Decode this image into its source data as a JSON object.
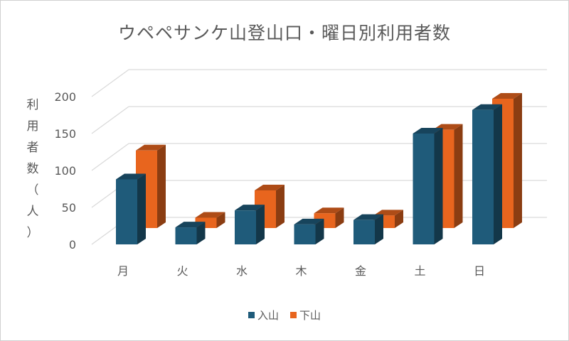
{
  "chart_data": {
    "type": "bar",
    "title": "ウペペサンケ山登山口・曜日別利用者数",
    "ylabel": "利用者数（人）",
    "xlabel": "",
    "categories": [
      "月",
      "火",
      "水",
      "木",
      "金",
      "土",
      "日"
    ],
    "series": [
      {
        "name": "入山",
        "values": [
          88,
          23,
          46,
          27,
          33,
          150,
          182
        ]
      },
      {
        "name": "下山",
        "values": [
          105,
          14,
          51,
          20,
          17,
          133,
          175
        ]
      }
    ],
    "ylim": [
      0,
      200
    ],
    "yticks": [
      "0",
      "50",
      "100",
      "150",
      "200"
    ],
    "grid": true,
    "legend_position": "bottom",
    "colors": {
      "入山": "#1f5b7a",
      "下山": "#e8651e",
      "grid": "#d9d9d9",
      "text": "#595959"
    }
  }
}
